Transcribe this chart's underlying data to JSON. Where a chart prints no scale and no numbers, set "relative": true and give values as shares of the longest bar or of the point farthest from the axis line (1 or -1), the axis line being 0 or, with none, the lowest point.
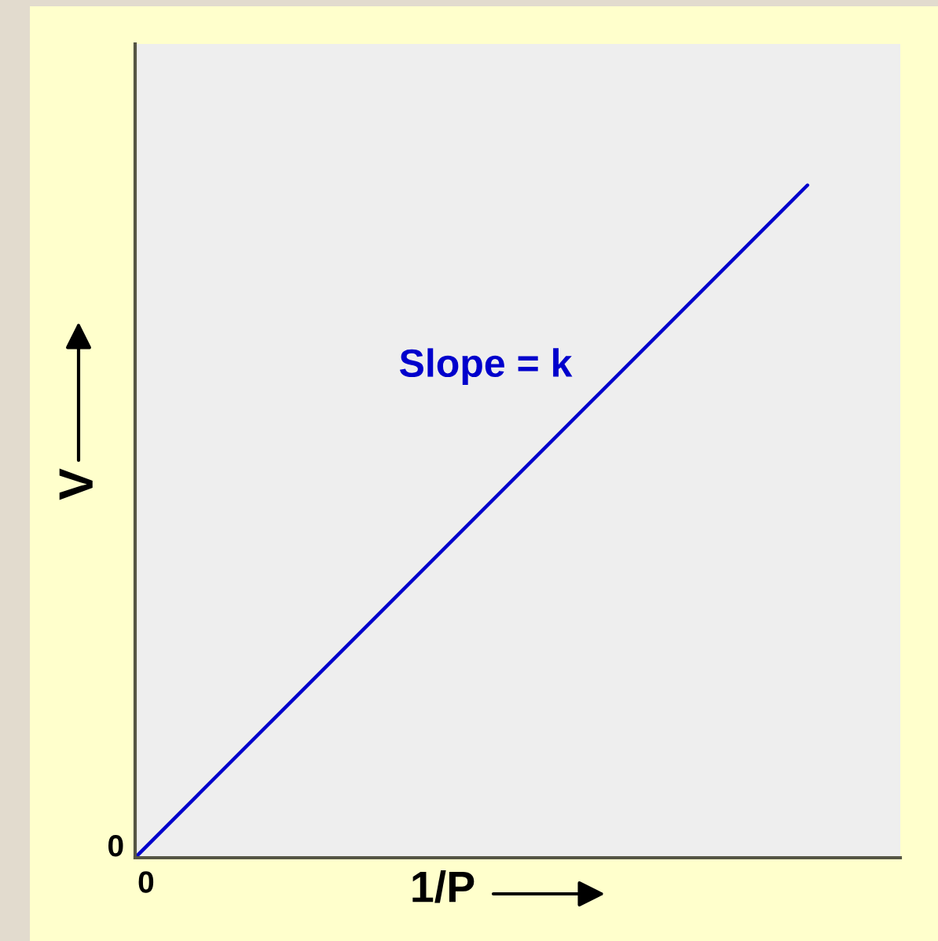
{
  "chart_data": {
    "type": "line",
    "relative": true,
    "categories": [
      null,
      null
    ],
    "series": [
      {
        "color": "#0000cc",
        "values": [
          0,
          1
        ]
      }
    ],
    "xlabel": "1/P",
    "ylabel": "V",
    "annotations": [
      "Slope = k",
      "0",
      "0"
    ],
    "line_style": "solid"
  }
}
